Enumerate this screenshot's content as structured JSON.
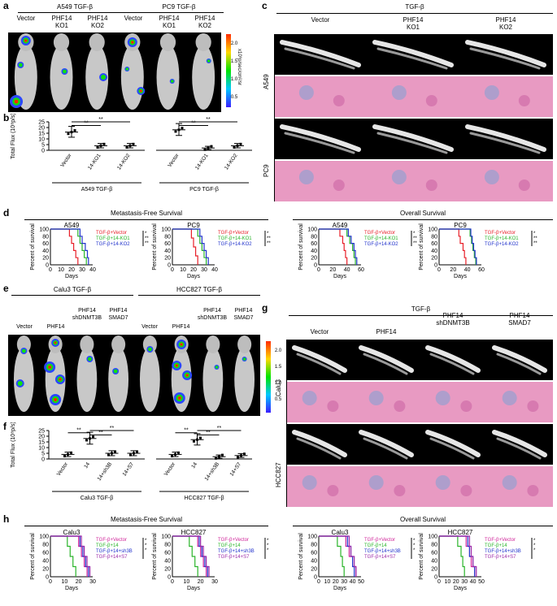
{
  "panels": {
    "a": "a",
    "b": "b",
    "c": "c",
    "d": "d",
    "e": "e",
    "f": "f",
    "g": "g",
    "h": "h"
  },
  "a": {
    "group1": "A549 TGF-β",
    "group2": "PC9 TGF-β",
    "cols": [
      "Vector",
      "PHF14\nKO1",
      "PHF14\nKO2",
      "Vector",
      "PHF14\nKO1",
      "PHF14\nKO2"
    ],
    "colorbar": {
      "ticks": [
        "2.0",
        "1.5",
        "1.0",
        "0.5"
      ],
      "unit": "x10⁶p/sec/cm²/sr"
    }
  },
  "b": {
    "ylabel": "Total Flux (10⁸p/s)",
    "yticks": [
      "25",
      "20",
      "15",
      "10",
      "5",
      "0"
    ],
    "xlabels": [
      "Vector",
      "14-KO1",
      "14-KO2",
      "Vector",
      "14-KO1",
      "14-KO2"
    ],
    "groups": [
      "A549 TGF-β",
      "PC9 TGF-β"
    ],
    "sig": [
      "**",
      "**",
      "**",
      "**"
    ],
    "chart_data": {
      "type": "scatter",
      "categories": [
        "Vector",
        "14-KO1",
        "14-KO2",
        "Vector",
        "14-KO1",
        "14-KO2"
      ],
      "means": [
        16,
        4,
        4,
        18,
        2,
        4
      ],
      "ylim": [
        0,
        25
      ]
    }
  },
  "c": {
    "title": "TGF-β",
    "cols": [
      "Vector",
      "PHF14\nKO1",
      "PHF14\nKO2"
    ],
    "rows": [
      "A549",
      "PC9"
    ]
  },
  "d": {
    "mfs": "Metastasis-Free Survival",
    "os": "Overall Survival",
    "plots": [
      {
        "title": "A549",
        "xmax": 40,
        "xticks": [
          "0",
          "10",
          "20",
          "30",
          "40"
        ],
        "legend": [
          "TGF-β+Vector",
          "TGF-β+14-KO1",
          "TGF-β+14-KO2"
        ]
      },
      {
        "title": "PC9",
        "xmax": 40,
        "xticks": [
          "0",
          "10",
          "20",
          "30",
          "40"
        ],
        "legend": [
          "TGF-β+Vector",
          "TGF-β+14-KO1",
          "TGF-β+14-KO2"
        ]
      },
      {
        "title": "A549",
        "xmax": 60,
        "xticks": [
          "0",
          "20",
          "40",
          "60"
        ],
        "legend": [
          "TGF-β+Vector",
          "TGF-β+14-KO1",
          "TGF-β+14-KO2"
        ]
      },
      {
        "title": "PC9",
        "xmax": 60,
        "xticks": [
          "0",
          "20",
          "40",
          "60"
        ],
        "legend": [
          "TGF-β+Vector",
          "TGF-β+14-KO1",
          "TGF-β+14-KO2"
        ]
      }
    ],
    "ylabel": "Percent of survival",
    "xlabel": "Days",
    "yticks": [
      "100",
      "80",
      "60",
      "40",
      "20",
      "0"
    ],
    "sig": [
      "*",
      "**",
      "**"
    ]
  },
  "e": {
    "group1": "Calu3 TGF-β",
    "group2": "HCC827 TGF-β",
    "cols": [
      "Vector",
      "PHF14",
      "PHF14\nshDNMT3B",
      "PHF14\nSMAD7",
      "Vector",
      "PHF14",
      "PHF14\nshDNMT3B",
      "PHF14\nSMAD7"
    ],
    "colorbar": {
      "ticks": [
        "2.0",
        "1.5",
        "1.0",
        "0.5"
      ],
      "unit": "x10⁶p/sec/cm²/sr"
    }
  },
  "f": {
    "ylabel": "Total Flux (10⁸p/s)",
    "yticks": [
      "25",
      "20",
      "15",
      "10",
      "5",
      "0"
    ],
    "xlabels": [
      "Vector",
      "14",
      "14+sh3B",
      "14+S7",
      "Vector",
      "14",
      "14+sh3B",
      "14+S7"
    ],
    "groups": [
      "Calu3 TGF-β",
      "HCC827 TGF-β"
    ],
    "sig": [
      "**",
      "**",
      "**",
      "**",
      "**",
      "**"
    ],
    "chart_data": {
      "type": "scatter",
      "categories": [
        "Vector",
        "14",
        "14+sh3B",
        "14+S7",
        "Vector",
        "14",
        "14+sh3B",
        "14+S7"
      ],
      "means": [
        4,
        18,
        5,
        5,
        4,
        17,
        2,
        3
      ],
      "ylim": [
        0,
        25
      ]
    }
  },
  "g": {
    "title": "TGF-β",
    "cols": [
      "Vector",
      "PHF14",
      "PHF14\nshDNMT3B",
      "PHF14\nSMAD7"
    ],
    "rows": [
      "Calu3",
      "HCC827"
    ]
  },
  "h": {
    "mfs": "Metastasis-Free Survival",
    "os": "Overall Survival",
    "plots": [
      {
        "title": "Calu3",
        "xmax": 30,
        "xticks": [
          "0",
          "10",
          "20",
          "30"
        ],
        "legend": [
          "TGF-β+Vector",
          "TGF-β+14",
          "TGF-β+14+sh3B",
          "TGF-β+14+S7"
        ]
      },
      {
        "title": "HCC827",
        "xmax": 30,
        "xticks": [
          "0",
          "10",
          "20",
          "30"
        ],
        "legend": [
          "TGF-β+Vector",
          "TGF-β+14",
          "TGF-β+14+sh3B",
          "TGF-β+14+S7"
        ]
      },
      {
        "title": "Calu3",
        "xmax": 50,
        "xticks": [
          "0",
          "10",
          "20",
          "30",
          "40",
          "50"
        ],
        "legend": [
          "TGF-β+Vector",
          "TGF-β+14",
          "TGF-β+14+sh3B",
          "TGF-β+14+S7"
        ]
      },
      {
        "title": "HCC827",
        "xmax": 50,
        "xticks": [
          "0",
          "10",
          "20",
          "30",
          "40",
          "50"
        ],
        "legend": [
          "TGF-β+Vector",
          "TGF-β+14",
          "TGF-β+14+sh3B",
          "TGF-β+14+S7"
        ]
      }
    ],
    "ylabel": "Percent of survival",
    "xlabel": "Days",
    "yticks": [
      "100",
      "80",
      "60",
      "40",
      "20",
      "0"
    ],
    "sig": [
      "*",
      "*",
      "*"
    ]
  },
  "colors": {
    "red": "#e8202a",
    "green": "#2bb52b",
    "blue": "#2233cc",
    "purple": "#9c2aa8",
    "magenta": "#d0259a"
  }
}
